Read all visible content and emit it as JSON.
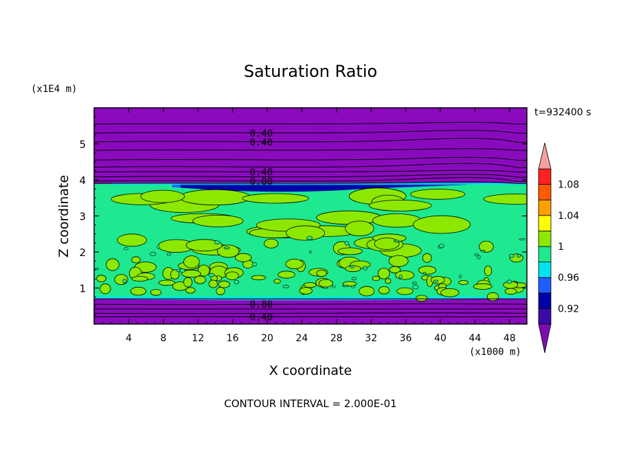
{
  "chart_data": {
    "type": "filled-contour",
    "title": "Saturation Ratio",
    "xlabel": "X coordinate",
    "ylabel": "Z coordinate",
    "x_unit": "(x1000 m)",
    "y_unit": "(x1E4 m)",
    "time_label": "t=932400 s",
    "footer": "CONTOUR INTERVAL = 2.000E-01",
    "xlim": [
      0,
      50
    ],
    "ylim": [
      0,
      6
    ],
    "x_ticks": [
      "4",
      "8",
      "12",
      "16",
      "20",
      "24",
      "28",
      "32",
      "36",
      "40",
      "44",
      "48"
    ],
    "x_tick_values": [
      4,
      8,
      12,
      16,
      20,
      24,
      28,
      32,
      36,
      40,
      44,
      48
    ],
    "y_ticks": [
      "1",
      "2",
      "3",
      "4",
      "5"
    ],
    "y_tick_values": [
      1,
      2,
      3,
      4,
      5
    ],
    "contour_labels": [
      {
        "text": "0.40",
        "x": 17.5,
        "z": 5.3
      },
      {
        "text": "0.40",
        "x": 17.5,
        "z": 5.05
      },
      {
        "text": "0.40",
        "x": 17.5,
        "z": 4.22
      },
      {
        "text": "0.80",
        "x": 17.5,
        "z": 3.96
      },
      {
        "text": "0.80",
        "x": 17.5,
        "z": 0.55
      },
      {
        "text": "0.40",
        "x": 17.5,
        "z": 0.2
      }
    ],
    "colorbar": {
      "levels": [
        "0.92",
        "0.96",
        "1",
        "1.04",
        "1.08"
      ],
      "level_values": [
        0.92,
        0.96,
        1.0,
        1.04,
        1.08
      ],
      "bins": [
        {
          "from": 0.9,
          "to": 0.92,
          "color": "#3a0aa8"
        },
        {
          "from": 0.92,
          "to": 0.94,
          "color": "#0000a8"
        },
        {
          "from": 0.94,
          "to": 0.96,
          "color": "#1e5eff"
        },
        {
          "from": 0.96,
          "to": 0.98,
          "color": "#00e4f0"
        },
        {
          "from": 0.98,
          "to": 1.0,
          "color": "#1ee890"
        },
        {
          "from": 1.0,
          "to": 1.02,
          "color": "#8ce800"
        },
        {
          "from": 1.02,
          "to": 1.04,
          "color": "#ffff00"
        },
        {
          "from": 1.04,
          "to": 1.06,
          "color": "#ffa000"
        },
        {
          "from": 1.06,
          "to": 1.08,
          "color": "#ff5a00"
        },
        {
          "from": 1.08,
          "to": 1.1,
          "color": "#ff2020"
        }
      ],
      "under_color": "#7a0fb0",
      "over_color": "#f4a0a0"
    },
    "regions": [
      {
        "name": "upper-dry-layer",
        "z_range": [
          3.9,
          6.0
        ],
        "value_range": "< 0.90",
        "color": "#8a0bbd"
      },
      {
        "name": "saturated-layer",
        "z_range": [
          0.7,
          3.9
        ],
        "value_range": "0.98 - 1.02",
        "color": "#1ee890"
      },
      {
        "name": "lower-dry-layer",
        "z_range": [
          0.0,
          0.7
        ],
        "value_range": "< 0.90",
        "color": "#8a0bbd"
      }
    ],
    "colors": {
      "background": "#ffffff",
      "dry": "#8a0bbd",
      "green": "#1ee890",
      "lime": "#8ce800",
      "frame": "#000000"
    }
  }
}
